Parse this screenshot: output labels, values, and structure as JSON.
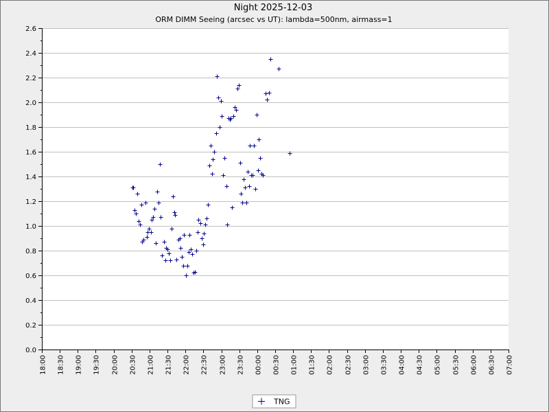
{
  "chart_data": {
    "type": "scatter",
    "title": "Night 2025-12-03",
    "subtitle": "ORM DIMM Seeing (arcsec vs UT): lambda=500nm, airmass=1",
    "xlabel": "",
    "ylabel": "",
    "x_range": [
      "18:00",
      "07:00"
    ],
    "ylim": [
      0.0,
      2.6
    ],
    "grid": true,
    "legend_position": "bottom-center",
    "x_tick_labels": [
      "18:00",
      "18:30",
      "19:00",
      "19:30",
      "20:00",
      "20:30",
      "21:00",
      "21:30",
      "22:00",
      "22:30",
      "23:00",
      "23:30",
      "00:00",
      "00:30",
      "01:00",
      "01:30",
      "02:00",
      "02:30",
      "03:00",
      "03:30",
      "04:00",
      "04:30",
      "05:00",
      "05:30",
      "06:00",
      "06:30",
      "07:00"
    ],
    "y_tick_labels": [
      "0.0",
      "0.2",
      "0.4",
      "0.6",
      "0.8",
      "1.0",
      "1.2",
      "1.4",
      "1.6",
      "1.8",
      "2.0",
      "2.2",
      "2.4",
      "2.6"
    ],
    "series": [
      {
        "name": "TNG",
        "color": "#00008b",
        "marker": "plus",
        "points": [
          [
            "20:31",
            1.31
          ],
          [
            "20:33",
            1.31
          ],
          [
            "20:35",
            1.13
          ],
          [
            "20:37",
            1.1
          ],
          [
            "20:40",
            1.26
          ],
          [
            "20:42",
            1.04
          ],
          [
            "20:44",
            1.01
          ],
          [
            "20:46",
            1.17
          ],
          [
            "20:48",
            0.87
          ],
          [
            "20:50",
            0.89
          ],
          [
            "20:53",
            1.19
          ],
          [
            "20:55",
            0.91
          ],
          [
            "20:57",
            0.95
          ],
          [
            "20:59",
            0.98
          ],
          [
            "21:02",
            0.95
          ],
          [
            "21:04",
            1.05
          ],
          [
            "21:06",
            1.07
          ],
          [
            "21:08",
            1.14
          ],
          [
            "21:10",
            0.86
          ],
          [
            "21:13",
            1.28
          ],
          [
            "21:15",
            1.19
          ],
          [
            "21:17",
            1.5
          ],
          [
            "21:19",
            1.07
          ],
          [
            "21:21",
            0.76
          ],
          [
            "21:24",
            0.87
          ],
          [
            "21:26",
            0.72
          ],
          [
            "21:28",
            0.82
          ],
          [
            "21:30",
            0.81
          ],
          [
            "21:32",
            0.78
          ],
          [
            "21:35",
            0.72
          ],
          [
            "21:37",
            0.98
          ],
          [
            "21:39",
            1.24
          ],
          [
            "21:41",
            1.11
          ],
          [
            "21:43",
            1.09
          ],
          [
            "21:45",
            0.73
          ],
          [
            "21:48",
            0.89
          ],
          [
            "21:50",
            0.9
          ],
          [
            "21:52",
            0.82
          ],
          [
            "21:54",
            0.75
          ],
          [
            "21:56",
            0.68
          ],
          [
            "21:58",
            0.93
          ],
          [
            "22:01",
            0.6
          ],
          [
            "22:03",
            0.68
          ],
          [
            "22:05",
            0.79
          ],
          [
            "22:07",
            0.93
          ],
          [
            "22:09",
            0.81
          ],
          [
            "22:11",
            0.77
          ],
          [
            "22:14",
            0.62
          ],
          [
            "22:16",
            0.63
          ],
          [
            "22:18",
            0.8
          ],
          [
            "22:20",
            0.95
          ],
          [
            "22:22",
            1.05
          ],
          [
            "22:25",
            1.02
          ],
          [
            "22:27",
            0.9
          ],
          [
            "22:29",
            0.85
          ],
          [
            "22:31",
            0.94
          ],
          [
            "22:33",
            1.01
          ],
          [
            "22:35",
            1.06
          ],
          [
            "22:38",
            1.17
          ],
          [
            "22:40",
            1.49
          ],
          [
            "22:42",
            1.65
          ],
          [
            "22:44",
            1.42
          ],
          [
            "22:46",
            1.54
          ],
          [
            "22:48",
            1.6
          ],
          [
            "22:51",
            1.75
          ],
          [
            "22:53",
            2.21
          ],
          [
            "22:55",
            2.04
          ],
          [
            "22:57",
            1.8
          ],
          [
            "22:59",
            2.01
          ],
          [
            "23:01",
            1.89
          ],
          [
            "23:03",
            1.41
          ],
          [
            "23:05",
            1.55
          ],
          [
            "23:08",
            1.32
          ],
          [
            "23:10",
            1.01
          ],
          [
            "23:12",
            1.87
          ],
          [
            "23:14",
            1.86
          ],
          [
            "23:16",
            1.87
          ],
          [
            "23:18",
            1.15
          ],
          [
            "23:20",
            1.89
          ],
          [
            "23:22",
            1.96
          ],
          [
            "23:25",
            1.94
          ],
          [
            "23:27",
            2.11
          ],
          [
            "23:29",
            2.14
          ],
          [
            "23:31",
            1.51
          ],
          [
            "23:33",
            1.26
          ],
          [
            "23:35",
            1.19
          ],
          [
            "23:37",
            1.38
          ],
          [
            "23:40",
            1.31
          ],
          [
            "23:42",
            1.19
          ],
          [
            "23:44",
            1.44
          ],
          [
            "23:46",
            1.32
          ],
          [
            "23:48",
            1.65
          ],
          [
            "23:50",
            1.41
          ],
          [
            "23:52",
            1.41
          ],
          [
            "23:55",
            1.65
          ],
          [
            "23:57",
            1.3
          ],
          [
            "23:59",
            1.9
          ],
          [
            "00:01",
            1.45
          ],
          [
            "00:03",
            1.7
          ],
          [
            "00:05",
            1.55
          ],
          [
            "00:07",
            1.42
          ],
          [
            "00:09",
            1.41
          ],
          [
            "00:14",
            2.07
          ],
          [
            "00:16",
            2.02
          ],
          [
            "00:20",
            2.08
          ],
          [
            "00:22",
            2.35
          ],
          [
            "00:36",
            2.27
          ],
          [
            "00:54",
            1.59
          ]
        ]
      }
    ]
  }
}
